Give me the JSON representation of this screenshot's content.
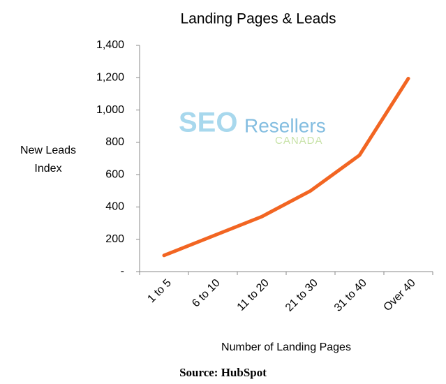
{
  "chart_data": {
    "type": "line",
    "title": "Landing Pages & Leads",
    "ylabel": "New Leads Index",
    "xlabel": "Number of Landing Pages",
    "categories": [
      "1 to 5",
      "6 to 10",
      "11 to 20",
      "21 to 30",
      "31 to 40",
      "Over 40"
    ],
    "values": [
      100,
      220,
      340,
      500,
      720,
      1195
    ],
    "color": "#f26522",
    "ylim": [
      0,
      1400
    ],
    "yticks": [
      {
        "value": 0,
        "label": "-"
      },
      200,
      400,
      600,
      800,
      {
        "value": 1000,
        "label": "1,000"
      },
      {
        "value": 1200,
        "label": "1,200"
      },
      {
        "value": 1400,
        "label": "1,400"
      }
    ],
    "watermark": {
      "main": "SEO",
      "brand": "Resellers",
      "sub": "CANADA"
    },
    "source": "Source: HubSpot"
  }
}
